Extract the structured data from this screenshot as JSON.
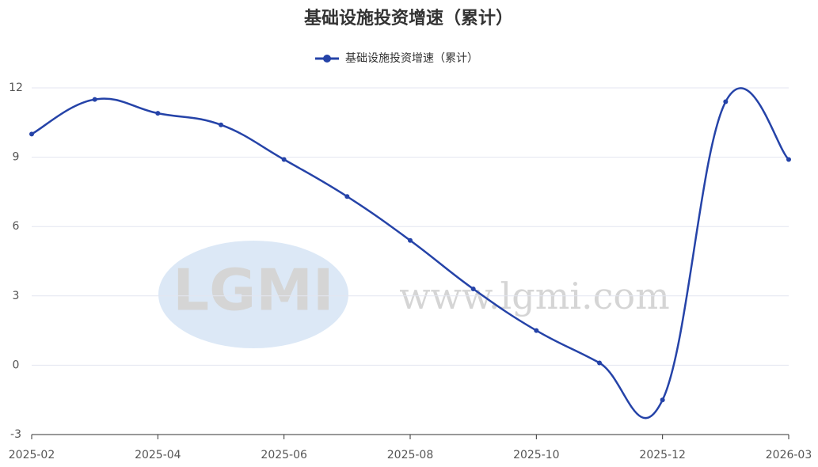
{
  "chart_data": {
    "type": "line",
    "title": "基础设施投资增速（累计）",
    "categories": [
      "2025-02",
      null,
      "2025-04",
      null,
      "2025-06",
      null,
      "2025-08",
      null,
      "2025-10",
      null,
      "2025-12",
      null,
      "2026-03"
    ],
    "series": [
      {
        "name": "基础设施投资增速（累计）",
        "color": "#2543a8",
        "values": [
          10.0,
          11.5,
          10.9,
          10.4,
          8.9,
          7.3,
          5.4,
          3.3,
          1.5,
          0.1,
          -1.5,
          11.4,
          8.9
        ]
      }
    ],
    "ylim": [
      -3,
      12
    ],
    "yticks": [
      -3,
      0,
      3,
      6,
      9,
      12
    ],
    "grid": true,
    "legend": "top",
    "watermark_logo": "LGMI",
    "watermark_text": "www.lgmi.com"
  }
}
